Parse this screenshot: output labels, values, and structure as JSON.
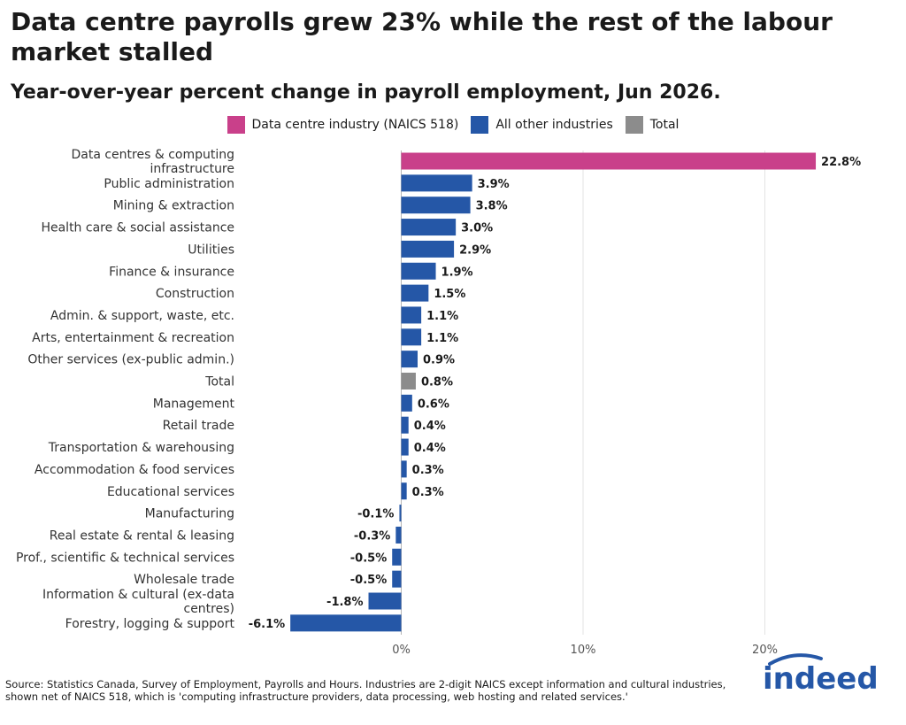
{
  "title": "Data centre payrolls grew 23% while the rest of the labour market stalled",
  "subtitle": "Year-over-year percent change in payroll employment, Jun 2026.",
  "legend": {
    "items": [
      {
        "label": "Data centre industry (NAICS 518)",
        "color": "#c9408a"
      },
      {
        "label": "All other industries",
        "color": "#2557a7"
      },
      {
        "label": "Total",
        "color": "#8c8c8c"
      }
    ]
  },
  "chart_data": {
    "type": "bar",
    "orientation": "horizontal",
    "categories": [
      "Data centres & computing infrastructure",
      "Public administration",
      "Mining & extraction",
      "Health care & social assistance",
      "Utilities",
      "Finance & insurance",
      "Construction",
      "Admin. & support, waste, etc.",
      "Arts, entertainment & recreation",
      "Other services (ex-public admin.)",
      "Total",
      "Management",
      "Retail trade",
      "Transportation & warehousing",
      "Accommodation & food services",
      "Educational services",
      "Manufacturing",
      "Real estate & rental & leasing",
      "Prof., scientific & technical services",
      "Wholesale trade",
      "Information & cultural (ex-data centres)",
      "Forestry, logging & support"
    ],
    "category_lines": [
      [
        "Data centres & computing",
        "infrastructure"
      ],
      [
        "Public administration"
      ],
      [
        "Mining & extraction"
      ],
      [
        "Health care & social assistance"
      ],
      [
        "Utilities"
      ],
      [
        "Finance & insurance"
      ],
      [
        "Construction"
      ],
      [
        "Admin. & support, waste, etc."
      ],
      [
        "Arts, entertainment & recreation"
      ],
      [
        "Other services (ex-public admin.)"
      ],
      [
        "Total"
      ],
      [
        "Management"
      ],
      [
        "Retail trade"
      ],
      [
        "Transportation & warehousing"
      ],
      [
        "Accommodation & food services"
      ],
      [
        "Educational services"
      ],
      [
        "Manufacturing"
      ],
      [
        "Real estate & rental & leasing"
      ],
      [
        "Prof., scientific & technical services"
      ],
      [
        "Wholesale trade"
      ],
      [
        "Information & cultural (ex-data",
        "centres)"
      ],
      [
        "Forestry, logging & support"
      ]
    ],
    "values": [
      22.8,
      3.9,
      3.8,
      3.0,
      2.9,
      1.9,
      1.5,
      1.1,
      1.1,
      0.9,
      0.8,
      0.6,
      0.4,
      0.4,
      0.3,
      0.3,
      -0.1,
      -0.3,
      -0.5,
      -0.5,
      -1.8,
      -6.1
    ],
    "value_labels": [
      "22.8%",
      "3.9%",
      "3.8%",
      "3.0%",
      "2.9%",
      "1.9%",
      "1.5%",
      "1.1%",
      "1.1%",
      "0.9%",
      "0.8%",
      "0.6%",
      "0.4%",
      "0.4%",
      "0.3%",
      "0.3%",
      "-0.1%",
      "-0.3%",
      "-0.5%",
      "-0.5%",
      "-1.8%",
      "-6.1%"
    ],
    "groups": [
      "Data centre industry (NAICS 518)",
      "All other industries",
      "All other industries",
      "All other industries",
      "All other industries",
      "All other industries",
      "All other industries",
      "All other industries",
      "All other industries",
      "All other industries",
      "Total",
      "All other industries",
      "All other industries",
      "All other industries",
      "All other industries",
      "All other industries",
      "All other industries",
      "All other industries",
      "All other industries",
      "All other industries",
      "All other industries",
      "All other industries"
    ],
    "x_ticks": [
      0,
      10,
      20
    ],
    "x_tick_labels": [
      "0%",
      "10%",
      "20%"
    ],
    "xlim": [
      -6.1,
      22.8
    ],
    "grid": "vertical gridlines",
    "legend_position": "top-center"
  },
  "source": "Source: Statistics Canada, Survey of Employment, Payrolls and Hours. Industries are 2-digit NAICS except information and cultural industries, shown net of NAICS 518, which is 'computing infrastructure providers, data processing, web hosting and related services.'",
  "logo": {
    "text": "indeed",
    "color": "#2557a7"
  }
}
